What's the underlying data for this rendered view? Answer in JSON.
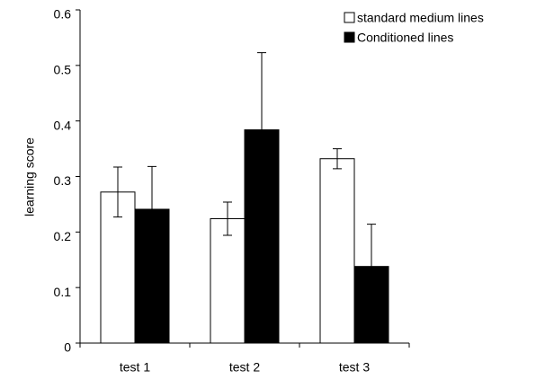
{
  "chart_data": {
    "type": "bar",
    "y_label": "learning score",
    "categories": [
      "test 1",
      "test 2",
      "test 3"
    ],
    "series": [
      {
        "name": "standard medium lines",
        "color": "#ffffff",
        "values": [
          0.272,
          0.224,
          0.332
        ],
        "errors": [
          0.045,
          0.03,
          0.018
        ]
      },
      {
        "name": "Conditioned lines",
        "color": "#000000",
        "values": [
          0.241,
          0.384,
          0.138
        ],
        "errors": [
          0.077,
          0.139,
          0.076
        ]
      }
    ],
    "ylim": [
      0,
      0.6
    ],
    "yticks": [
      0,
      0.1,
      0.2,
      0.3,
      0.4,
      0.5,
      0.6
    ],
    "legend": "top-right"
  }
}
